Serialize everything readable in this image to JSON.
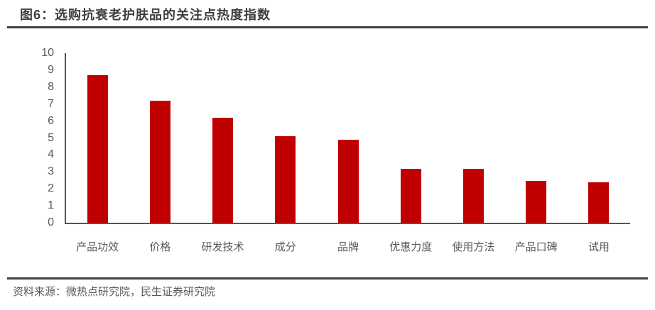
{
  "figure": {
    "title": "图6：选购抗衰老护肤品的关注点热度指数",
    "source_note": "资料来源：微热点研究院，民生证券研究院"
  },
  "colors": {
    "bar": "#c00000",
    "title_text": "#3f3f3f",
    "rule": "#3f3f3f",
    "axis_line": "#555555",
    "axis_text": "#595959"
  },
  "chart_data": {
    "type": "bar",
    "title": "选购抗衰老护肤品的关注点热度指数",
    "categories": [
      "产品功效",
      "价格",
      "研发技术",
      "成分",
      "品牌",
      "优惠力度",
      "使用方法",
      "产品口碑",
      "试用"
    ],
    "values": [
      8.7,
      7.2,
      6.2,
      5.1,
      4.9,
      3.2,
      3.2,
      2.45,
      2.4
    ],
    "xlabel": "",
    "ylabel": "",
    "ylim": [
      0,
      10
    ],
    "ytick_interval": 1,
    "yticks": [
      0,
      1,
      2,
      3,
      4,
      5,
      6,
      7,
      8,
      9,
      10
    ],
    "grid": false,
    "legend_position": "none",
    "bar_color": "#c00000"
  }
}
